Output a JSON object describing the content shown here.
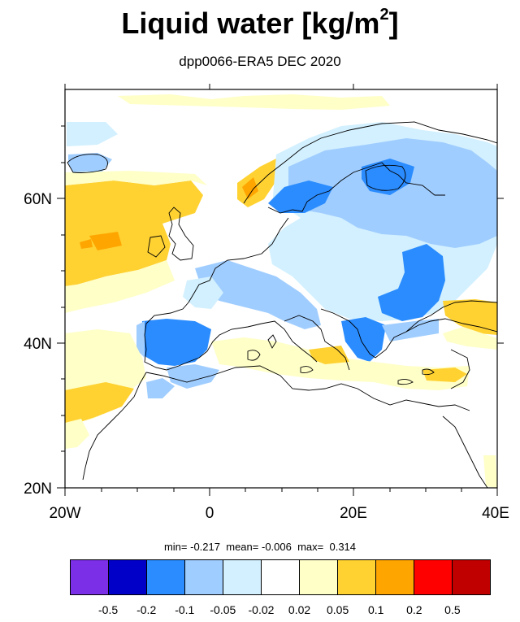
{
  "title": {
    "text": "Liquid water  [kg/m",
    "superscript": "2",
    "close": "]"
  },
  "subtitle": "dpp0066-ERA5 DEC 2020",
  "axes": {
    "x_ticks": [
      "20W",
      "0",
      "20E",
      "40E"
    ],
    "y_ticks": [
      "60N",
      "40N",
      "20N"
    ]
  },
  "stats": {
    "min_label": "min=",
    "min": "-0.217",
    "mean_label": "mean=",
    "mean": "-0.006",
    "max_label": "max=",
    "max": "0.314"
  },
  "colorbar": {
    "colors": [
      "#7b2fe6",
      "#0000c8",
      "#2a8cff",
      "#a0cdff",
      "#d2f0ff",
      "#ffffff",
      "#ffffc8",
      "#ffd232",
      "#ffa500",
      "#ff0000",
      "#c00000"
    ],
    "ticks": [
      "-0.5",
      "-0.2",
      "-0.1",
      "-0.05",
      "-0.02",
      "0.02",
      "0.05",
      "0.1",
      "0.2",
      "0.5"
    ]
  }
}
